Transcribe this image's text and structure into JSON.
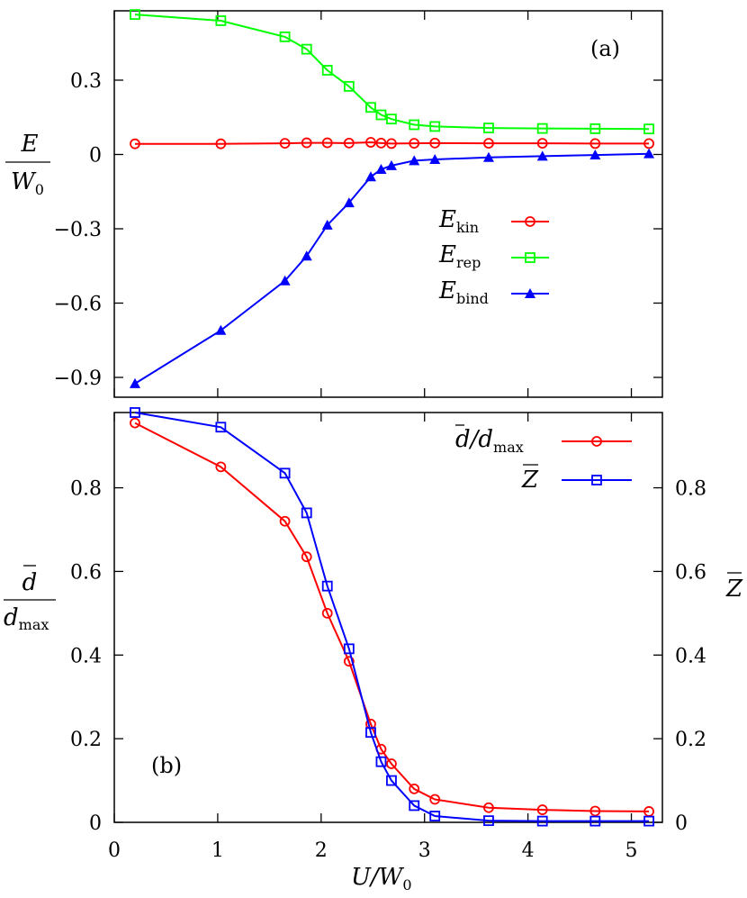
{
  "chart_data": [
    {
      "panel": "(a)",
      "type": "line",
      "title": "",
      "panel_label": "(a)",
      "xlabel": "",
      "ylabel_num": "E",
      "ylabel_den": "W",
      "ylabel_den_sub": "0",
      "xlim": [
        0,
        5.3
      ],
      "ylim": [
        -0.98,
        0.58
      ],
      "yticks": [
        -0.9,
        -0.6,
        -0.3,
        0,
        0.3
      ],
      "ytick_labels": [
        "−0.9",
        "−0.6",
        "−0.3",
        "0",
        "0.3"
      ],
      "legend_position": "center-right",
      "series": [
        {
          "name": "E_kin",
          "legend_main": "E",
          "legend_sub": "kin",
          "color": "#ff0000",
          "marker": "circle",
          "x": [
            0.2,
            1.03,
            1.65,
            1.86,
            2.06,
            2.27,
            2.48,
            2.58,
            2.68,
            2.9,
            3.1,
            3.62,
            4.14,
            4.65,
            5.17
          ],
          "y": [
            0.043,
            0.043,
            0.045,
            0.047,
            0.047,
            0.046,
            0.049,
            0.046,
            0.044,
            0.045,
            0.046,
            0.045,
            0.045,
            0.044,
            0.044
          ]
        },
        {
          "name": "E_rep",
          "legend_main": "E",
          "legend_sub": "rep",
          "color": "#00ff00",
          "marker": "square",
          "x": [
            0.2,
            1.03,
            1.65,
            1.86,
            2.06,
            2.27,
            2.48,
            2.58,
            2.68,
            2.9,
            3.1,
            3.62,
            4.14,
            4.65,
            5.17
          ],
          "y": [
            0.565,
            0.54,
            0.475,
            0.425,
            0.34,
            0.275,
            0.19,
            0.16,
            0.143,
            0.12,
            0.113,
            0.107,
            0.105,
            0.104,
            0.103
          ]
        },
        {
          "name": "E_bind",
          "legend_main": "E",
          "legend_sub": "bind",
          "color": "#0000ff",
          "marker": "triangle",
          "x": [
            0.2,
            1.03,
            1.65,
            1.86,
            2.06,
            2.27,
            2.48,
            2.58,
            2.68,
            2.9,
            3.1,
            3.62,
            4.14,
            4.65,
            5.17
          ],
          "y": [
            -0.925,
            -0.71,
            -0.51,
            -0.41,
            -0.285,
            -0.195,
            -0.09,
            -0.06,
            -0.045,
            -0.025,
            -0.02,
            -0.012,
            -0.007,
            -0.002,
            0.003
          ]
        }
      ]
    },
    {
      "panel": "(b)",
      "type": "line",
      "title": "",
      "panel_label": "(b)",
      "xlabel_main": "U/W",
      "xlabel_sub": "0",
      "ylabel_left_num": "d",
      "ylabel_left_den": "d",
      "ylabel_left_den_sub": "max",
      "ylabel_right": "Z",
      "xlim": [
        0,
        5.3
      ],
      "xticks": [
        0,
        1,
        2,
        3,
        4,
        5
      ],
      "xtick_labels": [
        "0",
        "1",
        "2",
        "3",
        "4",
        "5"
      ],
      "ylim": [
        0,
        0.98
      ],
      "yticks_left": [
        0,
        0.2,
        0.4,
        0.6,
        0.8
      ],
      "ytick_labels_left": [
        "0",
        "0.2",
        "0.4",
        "0.6",
        "0.8"
      ],
      "yticks_right": [
        0,
        0.2,
        0.4,
        0.6,
        0.8
      ],
      "ytick_labels_right": [
        "0",
        "0.2",
        "0.4",
        "0.6",
        "0.8"
      ],
      "legend_position": "top-right",
      "series": [
        {
          "name": "d/d_max",
          "legend_main": "d/d",
          "legend_sub": "max",
          "color": "#ff0000",
          "marker": "circle",
          "x": [
            0.2,
            1.03,
            1.65,
            1.86,
            2.06,
            2.27,
            2.48,
            2.58,
            2.68,
            2.9,
            3.1,
            3.62,
            4.14,
            4.65,
            5.17
          ],
          "y": [
            0.955,
            0.85,
            0.72,
            0.635,
            0.5,
            0.385,
            0.235,
            0.175,
            0.14,
            0.08,
            0.055,
            0.035,
            0.03,
            0.027,
            0.026
          ]
        },
        {
          "name": "Z",
          "legend_main": "Z",
          "legend_sub": "",
          "color": "#0000ff",
          "marker": "square",
          "x": [
            0.2,
            1.03,
            1.65,
            1.86,
            2.06,
            2.27,
            2.48,
            2.58,
            2.68,
            2.9,
            3.1,
            3.62,
            4.14,
            4.65,
            5.17
          ],
          "y": [
            0.98,
            0.945,
            0.835,
            0.74,
            0.565,
            0.415,
            0.215,
            0.145,
            0.1,
            0.04,
            0.015,
            0.004,
            0.003,
            0.003,
            0.003
          ]
        }
      ]
    }
  ]
}
